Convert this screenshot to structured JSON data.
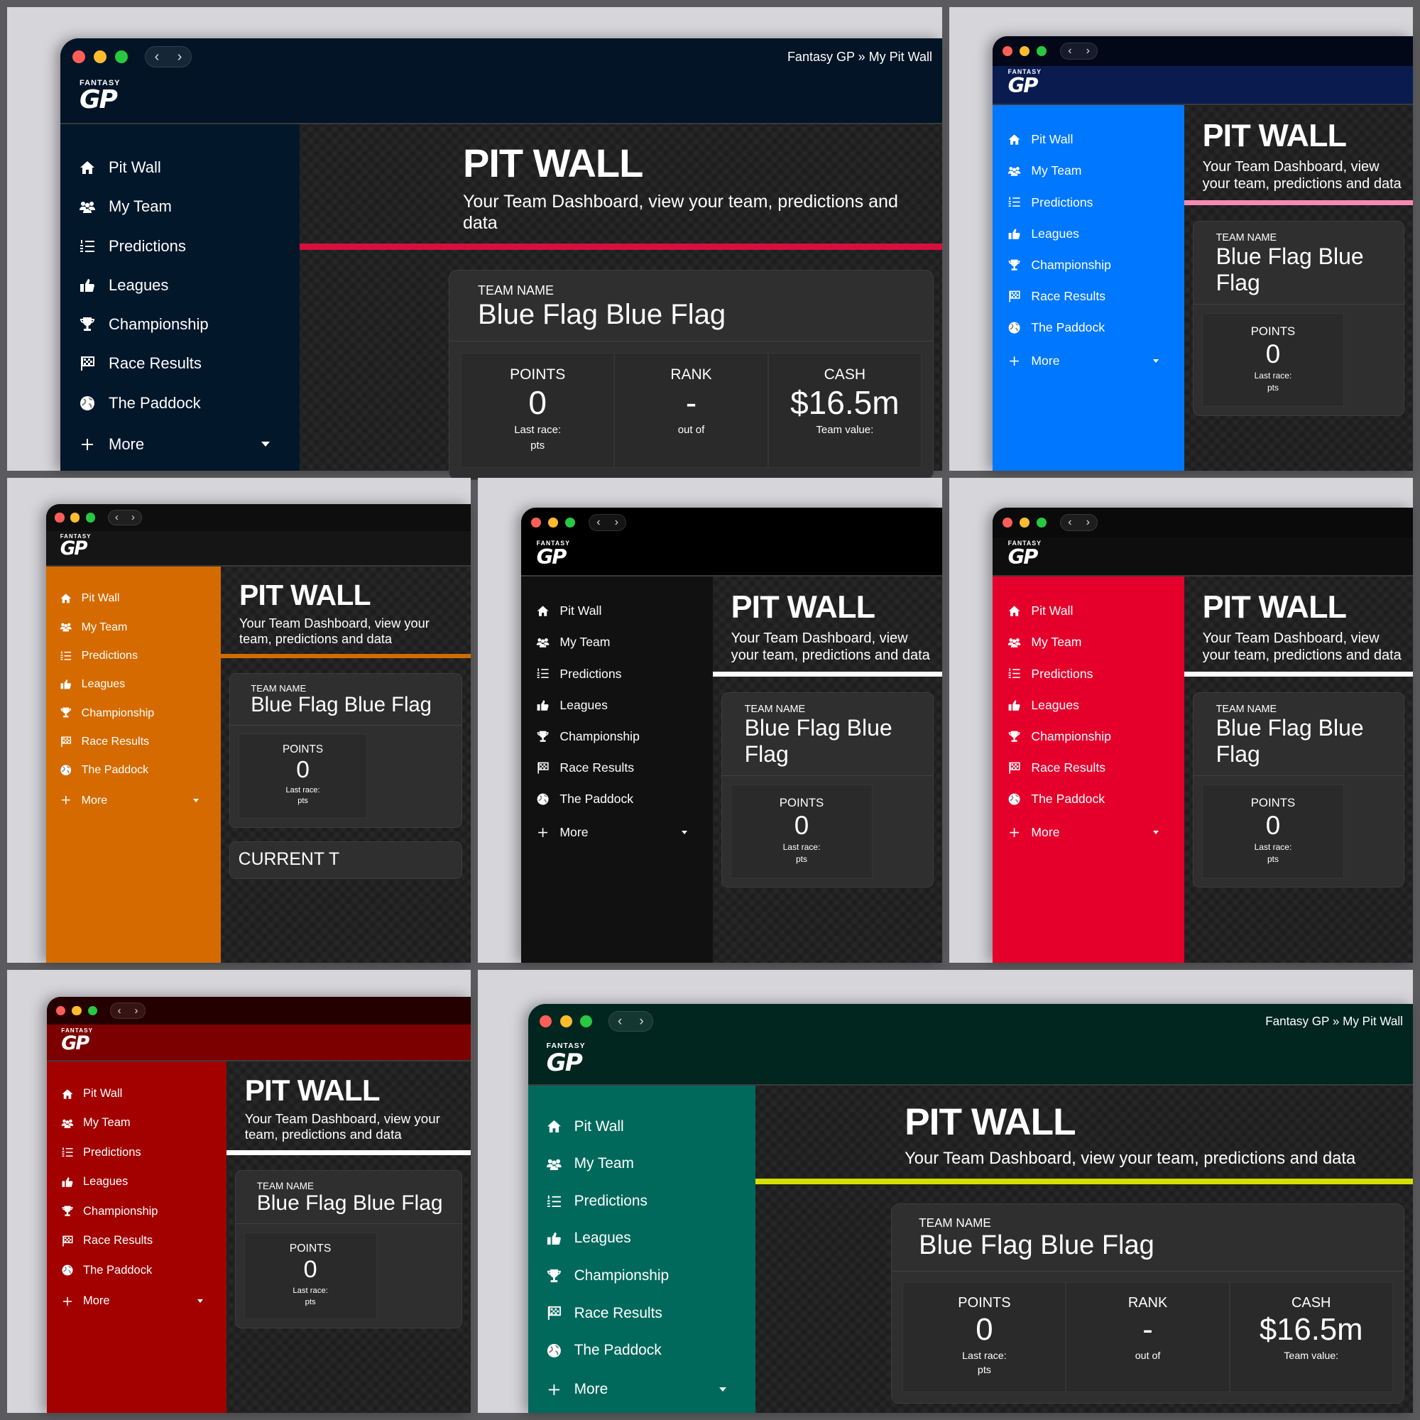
{
  "window": {
    "breadcrumb": "Fantasy GP » My Pit Wall",
    "back_icon": "chevron-left-icon",
    "forward_icon": "chevron-right-icon",
    "back_glyph": "‹",
    "forward_glyph": "›"
  },
  "logo": {
    "top": "FANTASY",
    "main": "GP"
  },
  "nav": {
    "items": [
      {
        "label": "Pit Wall",
        "icon": "home-icon"
      },
      {
        "label": "My Team",
        "icon": "users-icon"
      },
      {
        "label": "Predictions",
        "icon": "list-ol-icon"
      },
      {
        "label": "Leagues",
        "icon": "thumbs-up-icon"
      },
      {
        "label": "Championship",
        "icon": "trophy-icon"
      },
      {
        "label": "Race Results",
        "icon": "checkered-flag-icon"
      },
      {
        "label": "The Paddock",
        "icon": "globe-icon"
      }
    ],
    "more": {
      "label": "More",
      "icon": "plus-icon"
    }
  },
  "page": {
    "title": "PIT WALL",
    "subtitle": "Your Team Dashboard, view your team, predictions and data"
  },
  "team_card": {
    "label": "TEAM NAME",
    "name": "Blue Flag Blue Flag",
    "stats": [
      {
        "label": "POINTS",
        "value": "0",
        "sub": "Last race:",
        "sub2": "pts"
      },
      {
        "label": "RANK",
        "value": "-",
        "sub": "out of",
        "sub2": ""
      },
      {
        "label": "CASH",
        "value": "$16.5m",
        "sub": "Team value:",
        "sub2": ""
      }
    ]
  },
  "second_card": {
    "title": "CURRENT T"
  },
  "themes": [
    {
      "name": "navy",
      "titlebar": "#021426",
      "header": "#021426",
      "sidebar": "#03172b",
      "accent": "#d70f3e"
    },
    {
      "name": "blue",
      "titlebar": "#020818",
      "header": "#0a1b4f",
      "sidebar": "#0077ff",
      "accent": "#f58bb5"
    },
    {
      "name": "orange",
      "titlebar": "#0e0e0e",
      "header": "#151515",
      "sidebar": "#d56b00",
      "accent": "#d56b00"
    },
    {
      "name": "black",
      "titlebar": "#000000",
      "header": "#000000",
      "sidebar": "#111111",
      "accent": "#ffffff"
    },
    {
      "name": "red",
      "titlebar": "#0a0a0a",
      "header": "#0e0e0e",
      "sidebar": "#e4002b",
      "accent": "#ffffff"
    },
    {
      "name": "dark-red",
      "titlebar": "#250000",
      "header": "#7d0000",
      "sidebar": "#a30000",
      "accent": "#ffffff"
    },
    {
      "name": "teal",
      "titlebar": "#00261f",
      "header": "#00261f",
      "sidebar": "#00695c",
      "accent": "#d4e000"
    }
  ]
}
